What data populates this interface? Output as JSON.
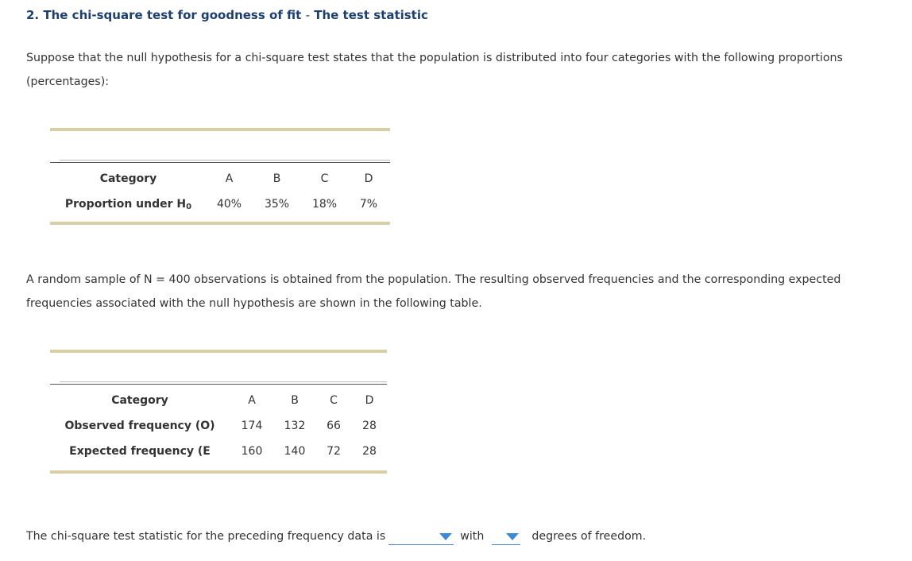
{
  "question": {
    "number": "2.",
    "title_main": "The chi-square test for goodness of fit",
    "title_sep": "-",
    "title_sub": "The test statistic"
  },
  "intro_text": "Suppose that the null hypothesis for a chi-square test states that the population is distributed into four categories with the following proportions (percentages):",
  "table1": {
    "header_label": "Category",
    "categories": [
      "A",
      "B",
      "C",
      "D"
    ],
    "row_label_main": "Proportion under H",
    "row_label_sub": "0",
    "values": [
      "40%",
      "35%",
      "18%",
      "7%"
    ]
  },
  "sample_text": "A random sample of N = 400 observations is obtained from the population. The resulting observed frequencies and the corresponding expected frequencies associated with the null hypothesis are shown in the following table.",
  "table2": {
    "header_label": "Category",
    "categories": [
      "A",
      "B",
      "C",
      "D"
    ],
    "observed_label": "Observed frequency (O)",
    "observed": [
      "174",
      "132",
      "66",
      "28"
    ],
    "expected_label": "Expected frequency (E",
    "expected": [
      "160",
      "140",
      "72",
      "28"
    ]
  },
  "answer": {
    "prefix": "The chi-square test statistic for the preceding frequency data is",
    "statistic_value": "",
    "middle": "with",
    "df_value": "",
    "suffix": "degrees of freedom.",
    "accent_color": "#3c8ad6",
    "title_color": "#1f3f6e",
    "rule_color": "#d9cfa6"
  }
}
